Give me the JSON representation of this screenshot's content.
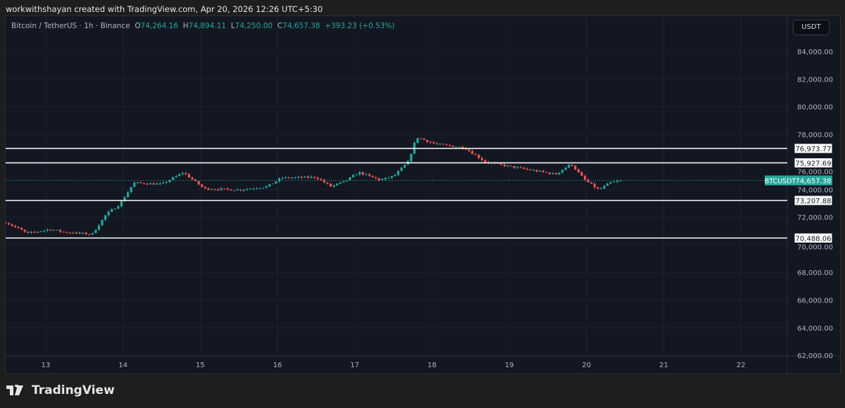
{
  "credit": "workwithshayan created with TradingView.com, Apr 20, 2026 12:26 UTC+5:30",
  "legend": {
    "symbol": "Bitcoin / TetherUS · 1h · Binance",
    "o_label": "O",
    "o": "74,264.16",
    "h_label": "H",
    "h": "74,894.11",
    "l_label": "L",
    "l": "74,250.00",
    "c_label": "C",
    "c": "74,657.38",
    "change": "+393.23 (+0.53%)"
  },
  "currency_button": "USDT",
  "price_axis": [
    "84,000.00",
    "82,000.00",
    "80,000.00",
    "78,000.00",
    "76,000.00",
    "74,000.00",
    "72,000.00",
    "70,000.00",
    "68,000.00",
    "66,000.00",
    "64,000.00",
    "62,000.00"
  ],
  "time_axis": [
    "13",
    "14",
    "15",
    "16",
    "17",
    "18",
    "19",
    "20",
    "21",
    "22"
  ],
  "levels": [
    "76,973.77",
    "75,927.69",
    "73,207.88",
    "70,488.06"
  ],
  "last_price": {
    "symbol": "BTCUSDT",
    "price": "74,657.38"
  },
  "colors": {
    "up": "#26a69a",
    "down": "#ef5350",
    "bg": "#131722"
  },
  "price_path": [
    [
      12.48,
      71630
    ],
    [
      12.77,
      70820
    ],
    [
      13.05,
      71120
    ],
    [
      13.23,
      70920
    ],
    [
      13.6,
      70760
    ],
    [
      13.78,
      72190
    ],
    [
      13.96,
      72950
    ],
    [
      14.14,
      74480
    ],
    [
      14.5,
      74380
    ],
    [
      14.78,
      75240
    ],
    [
      15.05,
      74070
    ],
    [
      15.5,
      73970
    ],
    [
      15.87,
      74220
    ],
    [
      16.05,
      74840
    ],
    [
      16.5,
      74890
    ],
    [
      16.69,
      74220
    ],
    [
      16.87,
      74580
    ],
    [
      17.05,
      75240
    ],
    [
      17.33,
      74680
    ],
    [
      17.51,
      74990
    ],
    [
      17.69,
      76000
    ],
    [
      17.8,
      77790
    ],
    [
      18.05,
      77280
    ],
    [
      18.42,
      77030
    ],
    [
      18.69,
      76000
    ],
    [
      18.97,
      75700
    ],
    [
      19.6,
      75100
    ],
    [
      19.8,
      75860
    ],
    [
      19.97,
      74730
    ],
    [
      20.16,
      73970
    ],
    [
      20.3,
      74480
    ],
    [
      20.47,
      74657
    ]
  ]
}
